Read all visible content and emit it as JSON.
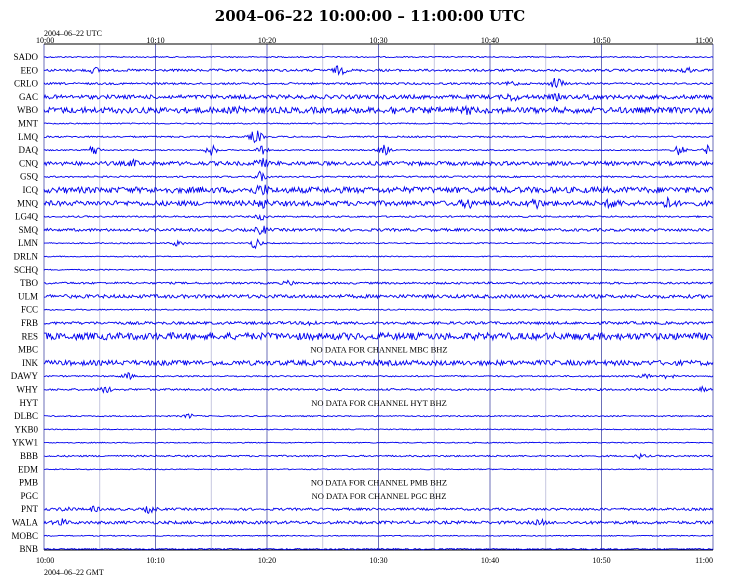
{
  "chart_data": {
    "type": "line",
    "title": "2004–06–22 10:00:00 – 11:00:00 UTC",
    "top_axis_label": "2004–06–22 UTC",
    "bottom_axis_label": "2004–06–22 GMT",
    "x_ticks": [
      "10:00",
      "10:10",
      "10:20",
      "10:30",
      "10:40",
      "10:50",
      "11:00"
    ],
    "x_range": [
      "10:00",
      "11:00"
    ],
    "trace_color": "#0000ee",
    "grid": true,
    "stations": [
      {
        "name": "SADO",
        "amp": 0.6,
        "events": []
      },
      {
        "name": "EEO",
        "amp": 1.2,
        "events": [
          [
            4.5,
            2.5
          ],
          [
            26.5,
            4
          ],
          [
            57.5,
            3
          ]
        ]
      },
      {
        "name": "CRLO",
        "amp": 1.0,
        "events": [
          [
            46,
            6
          ],
          [
            42,
            2
          ]
        ]
      },
      {
        "name": "GAC",
        "amp": 2.0,
        "events": [
          [
            42,
            3
          ],
          [
            46,
            2
          ],
          [
            49,
            2
          ]
        ]
      },
      {
        "name": "WBO",
        "amp": 3.0,
        "events": [
          [
            17.5,
            3
          ],
          [
            31.5,
            2
          ],
          [
            38,
            2
          ]
        ]
      },
      {
        "name": "MNT",
        "amp": 0.6,
        "events": []
      },
      {
        "name": "LMQ",
        "amp": 0.8,
        "events": [
          [
            19,
            7
          ]
        ]
      },
      {
        "name": "DAQ",
        "amp": 0.6,
        "events": [
          [
            4.5,
            5
          ],
          [
            15,
            5
          ],
          [
            19.5,
            4
          ],
          [
            30.5,
            5
          ],
          [
            57,
            5
          ],
          [
            59.7,
            5
          ]
        ]
      },
      {
        "name": "CNQ",
        "amp": 2.0,
        "events": [
          [
            19.5,
            4
          ],
          [
            8,
            2
          ]
        ]
      },
      {
        "name": "GSQ",
        "amp": 0.8,
        "events": [
          [
            19.5,
            5
          ]
        ]
      },
      {
        "name": "ICQ",
        "amp": 3.0,
        "events": [
          [
            19.5,
            5
          ]
        ]
      },
      {
        "name": "MNQ",
        "amp": 2.5,
        "events": [
          [
            19.5,
            5
          ],
          [
            38,
            4
          ],
          [
            44,
            5
          ],
          [
            51,
            4
          ],
          [
            56,
            5
          ]
        ]
      },
      {
        "name": "LG4Q",
        "amp": 0.8,
        "events": [
          [
            19.5,
            3
          ]
        ]
      },
      {
        "name": "SMQ",
        "amp": 1.4,
        "events": [
          [
            19.5,
            4
          ]
        ]
      },
      {
        "name": "LMN",
        "amp": 0.6,
        "events": [
          [
            12,
            3
          ],
          [
            19,
            5
          ]
        ]
      },
      {
        "name": "DRLN",
        "amp": 0.5,
        "events": []
      },
      {
        "name": "SCHQ",
        "amp": 0.6,
        "events": []
      },
      {
        "name": "TBO",
        "amp": 1.0,
        "events": [
          [
            22,
            2
          ]
        ]
      },
      {
        "name": "ULM",
        "amp": 1.8,
        "events": []
      },
      {
        "name": "FCC",
        "amp": 0.6,
        "events": []
      },
      {
        "name": "FRB",
        "amp": 1.4,
        "events": [
          [
            24,
            2
          ]
        ]
      },
      {
        "name": "RES",
        "amp": 3.5,
        "events": []
      },
      {
        "name": "MBC",
        "amp": 0,
        "events": [],
        "note": "NO DATA FOR CHANNEL MBC BHZ"
      },
      {
        "name": "INK",
        "amp": 2.5,
        "events": []
      },
      {
        "name": "DAWY",
        "amp": 0.7,
        "events": [
          [
            7.5,
            3
          ],
          [
            54,
            2
          ],
          [
            56,
            2
          ]
        ]
      },
      {
        "name": "WHY",
        "amp": 1.0,
        "events": [
          [
            5.5,
            3
          ],
          [
            59,
            2
          ]
        ]
      },
      {
        "name": "HYT",
        "amp": 0,
        "events": [],
        "note": "NO DATA FOR CHANNEL HYT BHZ"
      },
      {
        "name": "DLBC",
        "amp": 0.6,
        "events": [
          [
            13,
            2
          ]
        ]
      },
      {
        "name": "YKB0",
        "amp": 0.5,
        "events": []
      },
      {
        "name": "YKW1",
        "amp": 0.5,
        "events": []
      },
      {
        "name": "BBB",
        "amp": 0.8,
        "events": [
          [
            53.5,
            2
          ]
        ]
      },
      {
        "name": "EDM",
        "amp": 0.5,
        "events": []
      },
      {
        "name": "PMB",
        "amp": 0,
        "events": [],
        "note": "NO DATA FOR CHANNEL PMB BHZ"
      },
      {
        "name": "PGC",
        "amp": 0,
        "events": [],
        "note": "NO DATA FOR CHANNEL PGC BHZ"
      },
      {
        "name": "PNT",
        "amp": 1.2,
        "events": [
          [
            2,
            2
          ],
          [
            4.5,
            2
          ],
          [
            9.5,
            3
          ]
        ]
      },
      {
        "name": "WALA",
        "amp": 1.5,
        "events": [
          [
            1.5,
            3
          ],
          [
            44.5,
            2
          ]
        ]
      },
      {
        "name": "MOBC",
        "amp": 0.5,
        "events": []
      },
      {
        "name": "BNB",
        "amp": 0.6,
        "events": []
      }
    ]
  }
}
